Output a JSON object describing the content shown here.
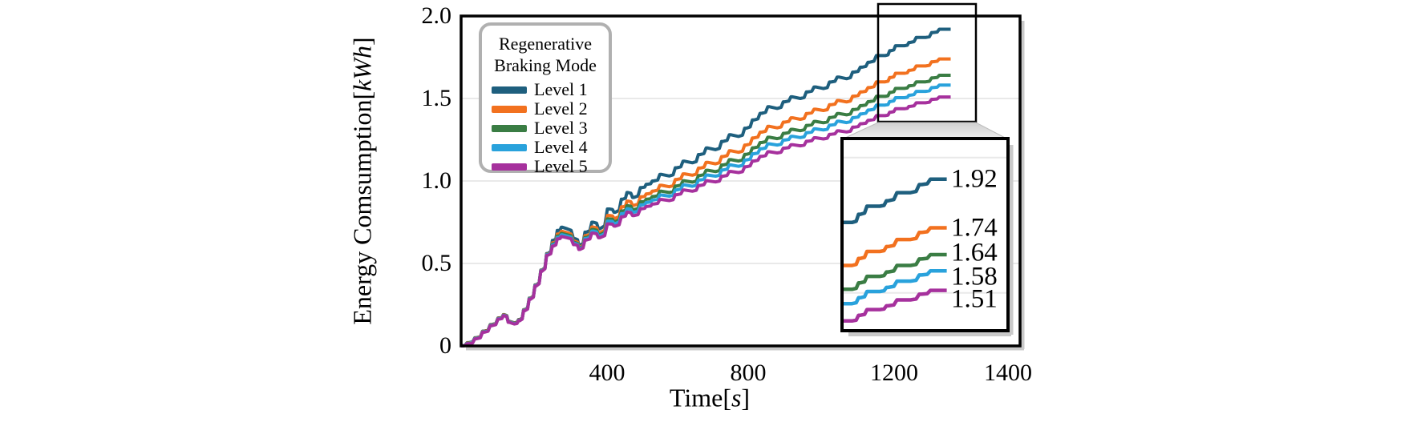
{
  "figure": {
    "ylabel": {
      "prefix": "Energy Comsumption[",
      "unit": "kWh",
      "suffix": "]"
    },
    "xlabel": {
      "prefix": "Time[",
      "unit": "s",
      "suffix": "]"
    },
    "legend": {
      "title_line1": "Regenerative",
      "title_line2": "Braking Mode",
      "items": [
        {
          "label": "Level 1",
          "color": "#1e5f7e"
        },
        {
          "label": "Level 2",
          "color": "#f2711f"
        },
        {
          "label": "Level 3",
          "color": "#3a7d44"
        },
        {
          "label": "Level 4",
          "color": "#29a2dc"
        },
        {
          "label": "Level 5",
          "color": "#a6319d"
        }
      ]
    }
  },
  "chart_data": {
    "type": "line",
    "title": "",
    "xlabel": "Time[s]",
    "ylabel": "Energy Comsumption[kWh]",
    "xlim": [
      0,
      1450
    ],
    "ylim": [
      0,
      2.0
    ],
    "x_ticks": [
      {
        "t": 400,
        "label": "400"
      },
      {
        "t": 800,
        "label": "800"
      },
      {
        "t": 1200,
        "label": "1200"
      },
      {
        "t": 1400,
        "label": "1400"
      }
    ],
    "y_ticks": [
      {
        "v": 0,
        "label": "0"
      },
      {
        "v": 0.5,
        "label": "0.5"
      },
      {
        "v": 1.0,
        "label": "1.0"
      },
      {
        "v": 1.5,
        "label": "1.5"
      },
      {
        "v": 2.0,
        "label": "2.0"
      }
    ],
    "grid": "horizontal-only",
    "gridline_values": [
      0.5,
      1.0,
      1.5
    ],
    "legend_title": "Regenerative Braking Mode",
    "legend_position": "upper-left",
    "x": [
      0,
      20,
      40,
      60,
      80,
      100,
      112,
      125,
      138,
      152,
      165,
      180,
      195,
      210,
      225,
      240,
      252,
      262,
      275,
      296,
      308,
      325,
      343,
      360,
      385,
      400,
      420,
      433,
      448,
      470,
      483,
      500,
      520,
      540,
      560,
      580,
      600,
      620,
      640,
      660,
      680,
      700,
      720,
      740,
      760,
      780,
      800,
      820,
      840,
      860,
      880,
      900,
      920,
      940,
      960,
      980,
      1000,
      1020,
      1040,
      1060,
      1082,
      1100,
      1115,
      1130,
      1150,
      1165,
      1185,
      1205,
      1225,
      1245,
      1258,
      1270
    ],
    "series": [
      {
        "name": "Level 1",
        "color": "#1e5f7e",
        "final_value": 1.92,
        "values": [
          0,
          0.02,
          0.05,
          0.09,
          0.13,
          0.17,
          0.19,
          0.15,
          0.14,
          0.16,
          0.22,
          0.29,
          0.37,
          0.46,
          0.56,
          0.64,
          0.7,
          0.72,
          0.71,
          0.65,
          0.61,
          0.69,
          0.75,
          0.71,
          0.83,
          0.81,
          0.89,
          0.93,
          0.9,
          0.96,
          0.98,
          1.0,
          1.04,
          1.03,
          1.08,
          1.12,
          1.11,
          1.16,
          1.2,
          1.19,
          1.24,
          1.28,
          1.27,
          1.32,
          1.37,
          1.41,
          1.45,
          1.44,
          1.48,
          1.51,
          1.5,
          1.54,
          1.57,
          1.56,
          1.6,
          1.63,
          1.62,
          1.66,
          1.69,
          1.72,
          1.76,
          1.76,
          1.79,
          1.82,
          1.82,
          1.84,
          1.87,
          1.87,
          1.9,
          1.92,
          1.92,
          1.92
        ]
      },
      {
        "name": "Level 2",
        "color": "#f2711f",
        "final_value": 1.74,
        "values": [
          0,
          0.018,
          0.048,
          0.088,
          0.128,
          0.168,
          0.188,
          0.148,
          0.138,
          0.158,
          0.218,
          0.288,
          0.368,
          0.458,
          0.556,
          0.625,
          0.678,
          0.695,
          0.686,
          0.634,
          0.599,
          0.669,
          0.721,
          0.686,
          0.791,
          0.774,
          0.843,
          0.878,
          0.852,
          0.904,
          0.922,
          0.939,
          0.974,
          0.965,
          1.009,
          1.043,
          1.035,
          1.078,
          1.113,
          1.104,
          1.148,
          1.183,
          1.174,
          1.218,
          1.261,
          1.296,
          1.331,
          1.322,
          1.357,
          1.383,
          1.374,
          1.409,
          1.435,
          1.427,
          1.462,
          1.488,
          1.479,
          1.514,
          1.54,
          1.566,
          1.601,
          1.601,
          1.627,
          1.653,
          1.653,
          1.671,
          1.697,
          1.697,
          1.723,
          1.74,
          1.74,
          1.74
        ]
      },
      {
        "name": "Level 3",
        "color": "#3a7d44",
        "final_value": 1.64,
        "values": [
          0,
          0.016,
          0.046,
          0.086,
          0.126,
          0.166,
          0.186,
          0.146,
          0.136,
          0.156,
          0.216,
          0.286,
          0.366,
          0.456,
          0.554,
          0.618,
          0.666,
          0.682,
          0.674,
          0.626,
          0.594,
          0.658,
          0.706,
          0.674,
          0.77,
          0.754,
          0.818,
          0.85,
          0.826,
          0.874,
          0.89,
          0.906,
          0.938,
          0.93,
          0.97,
          1.001,
          0.993,
          1.033,
          1.065,
          1.057,
          1.097,
          1.129,
          1.121,
          1.161,
          1.201,
          1.233,
          1.265,
          1.257,
          1.289,
          1.313,
          1.305,
          1.337,
          1.361,
          1.353,
          1.385,
          1.409,
          1.401,
          1.433,
          1.457,
          1.481,
          1.513,
          1.513,
          1.537,
          1.561,
          1.561,
          1.577,
          1.601,
          1.601,
          1.625,
          1.641,
          1.641,
          1.641
        ]
      },
      {
        "name": "Level 4",
        "color": "#29a2dc",
        "final_value": 1.58,
        "values": [
          0,
          0.015,
          0.045,
          0.085,
          0.125,
          0.165,
          0.185,
          0.145,
          0.135,
          0.155,
          0.215,
          0.285,
          0.365,
          0.455,
          0.553,
          0.613,
          0.658,
          0.674,
          0.666,
          0.621,
          0.59,
          0.651,
          0.696,
          0.666,
          0.757,
          0.742,
          0.802,
          0.832,
          0.81,
          0.855,
          0.87,
          0.885,
          0.915,
          0.908,
          0.946,
          0.976,
          0.968,
          1.006,
          1.036,
          1.029,
          1.067,
          1.097,
          1.089,
          1.127,
          1.165,
          1.195,
          1.225,
          1.218,
          1.248,
          1.271,
          1.263,
          1.293,
          1.316,
          1.309,
          1.339,
          1.362,
          1.354,
          1.384,
          1.407,
          1.43,
          1.46,
          1.46,
          1.482,
          1.505,
          1.505,
          1.52,
          1.543,
          1.543,
          1.566,
          1.581,
          1.581,
          1.581
        ]
      },
      {
        "name": "Level 5",
        "color": "#a6319d",
        "final_value": 1.51,
        "values": [
          0,
          0.013,
          0.043,
          0.083,
          0.123,
          0.163,
          0.183,
          0.143,
          0.133,
          0.153,
          0.213,
          0.283,
          0.363,
          0.453,
          0.55,
          0.606,
          0.649,
          0.663,
          0.656,
          0.614,
          0.585,
          0.642,
          0.684,
          0.656,
          0.74,
          0.726,
          0.783,
          0.811,
          0.79,
          0.832,
          0.846,
          0.86,
          0.888,
          0.881,
          0.917,
          0.945,
          0.938,
          0.973,
          1.001,
          0.994,
          1.029,
          1.058,
          1.051,
          1.086,
          1.121,
          1.149,
          1.177,
          1.17,
          1.199,
          1.22,
          1.213,
          1.241,
          1.262,
          1.255,
          1.283,
          1.304,
          1.297,
          1.326,
          1.347,
          1.368,
          1.396,
          1.396,
          1.417,
          1.438,
          1.438,
          1.452,
          1.474,
          1.474,
          1.495,
          1.509,
          1.509,
          1.509
        ]
      }
    ],
    "inset": {
      "xlim": [
        1082,
        1380
      ],
      "ylim": [
        1.36,
        2.07
      ],
      "gridline_values": [
        1.5,
        2.0
      ],
      "value_labels": [
        "1.92",
        "1.74",
        "1.64",
        "1.58",
        "1.51"
      ]
    }
  }
}
